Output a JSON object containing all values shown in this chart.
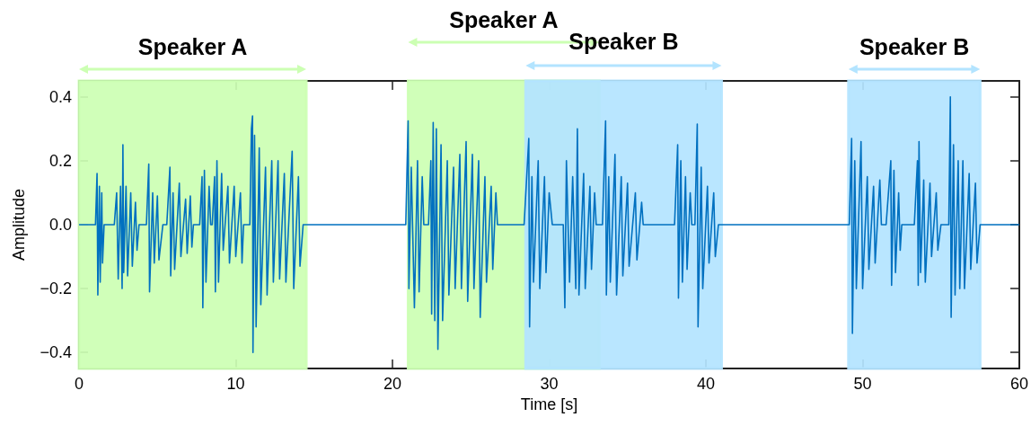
{
  "chart_data": {
    "type": "line",
    "xlabel": "Time [s]",
    "ylabel": "Amplitude",
    "xlim": [
      0,
      60
    ],
    "xticks": [
      0,
      10,
      20,
      30,
      40,
      50,
      60
    ],
    "ylim": [
      -0.45,
      0.45
    ],
    "yticks": [
      {
        "value": -0.4,
        "label": "−0.4"
      },
      {
        "value": -0.2,
        "label": "−0.2"
      },
      {
        "value": 0,
        "label": "0.0"
      },
      0.2,
      0.4
    ],
    "grid": false,
    "marker": "none",
    "line_style": "solid",
    "bands": [
      {
        "axis": "x",
        "from": 0,
        "to": 14.5,
        "label": "Speaker A",
        "color": "#ccffb3"
      },
      {
        "axis": "x",
        "from": 21.0,
        "to": 33.2,
        "label": "Speaker A",
        "color": "#ccffb3"
      },
      {
        "axis": "x",
        "from": 28.5,
        "to": 41.0,
        "label": "Speaker B",
        "color": "#b3e4ff"
      },
      {
        "axis": "x",
        "from": 49.1,
        "to": 57.5,
        "label": "Speaker B",
        "color": "#b3e4ff"
      }
    ],
    "series": [
      {
        "color": "#0070c0",
        "x": [
          0,
          1.05,
          1.15,
          1.2,
          1.3,
          1.35,
          1.45,
          1.5,
          1.6,
          2.25,
          2.4,
          2.5,
          2.65,
          2.75,
          2.8,
          2.85,
          3.0,
          3.1,
          3.3,
          3.4,
          3.6,
          3.7,
          3.83,
          4.3,
          4.45,
          4.5,
          4.7,
          4.8,
          5.0,
          5.1,
          5.35,
          5.6,
          5.8,
          5.85,
          6.0,
          6.1,
          6.4,
          6.5,
          6.8,
          6.9,
          7.1,
          7.2,
          7.3,
          7.7,
          7.85,
          7.9,
          8.0,
          8.1,
          8.3,
          8.4,
          8.5,
          8.65,
          8.7,
          8.8,
          8.9,
          9.1,
          9.2,
          9.5,
          9.6,
          9.9,
          10.0,
          10.3,
          10.4,
          10.5,
          10.9,
          11.0,
          11.07,
          11.1,
          11.2,
          11.3,
          11.5,
          11.6,
          11.9,
          12.0,
          12.3,
          12.4,
          12.7,
          12.8,
          13.1,
          13.2,
          13.6,
          13.7,
          14.0,
          14.1,
          14.3,
          20.85,
          21.0,
          21.05,
          21.2,
          21.4,
          21.6,
          21.7,
          21.9,
          22.0,
          22.3,
          22.45,
          22.5,
          22.6,
          22.7,
          22.8,
          22.9,
          23.1,
          23.2,
          23.5,
          23.6,
          23.9,
          24.0,
          24.3,
          24.4,
          24.7,
          24.8,
          25.1,
          25.2,
          25.5,
          25.6,
          25.9,
          26.0,
          26.3,
          26.4,
          26.6,
          26.7,
          28.4,
          28.7,
          28.75,
          28.9,
          29.0,
          29.3,
          29.4,
          29.7,
          29.8,
          30.0,
          30.2,
          30.9,
          31.0,
          31.1,
          31.3,
          31.5,
          31.7,
          31.8,
          31.9,
          32.2,
          32.3,
          32.6,
          32.7,
          32.9,
          33.0,
          33.4,
          33.6,
          33.65,
          33.8,
          33.9,
          34.2,
          34.3,
          34.6,
          34.7,
          35.0,
          35.1,
          35.5,
          35.6,
          35.9,
          36.0,
          38.0,
          38.2,
          38.25,
          38.4,
          38.5,
          38.7,
          38.8,
          39.0,
          39.1,
          39.3,
          39.45,
          39.5,
          39.7,
          39.8,
          40.1,
          40.2,
          40.5,
          40.6,
          40.8,
          49.15,
          49.3,
          49.35,
          49.5,
          49.6,
          49.9,
          50.0,
          50.3,
          50.4,
          50.7,
          50.8,
          51.1,
          51.2,
          51.5,
          51.8,
          51.85,
          52.0,
          52.1,
          52.3,
          52.4,
          52.5,
          53.3,
          53.5,
          53.55,
          53.6,
          53.7,
          53.9,
          54.0,
          54.3,
          54.4,
          54.7,
          54.8,
          55.0,
          55.5,
          55.6,
          55.65,
          55.8,
          55.9,
          56.1,
          56.2,
          56.4,
          56.5,
          56.8,
          56.9,
          57.2,
          57.3,
          57.5,
          60
        ],
        "values": [
          0,
          0,
          0.16,
          -0.22,
          0.12,
          -0.18,
          0.1,
          -0.12,
          0,
          0,
          0.1,
          -0.17,
          0.12,
          -0.2,
          0.25,
          -0.15,
          0.12,
          -0.16,
          0.1,
          -0.13,
          0.07,
          -0.08,
          0,
          0,
          0.19,
          -0.21,
          0.1,
          -0.12,
          0.09,
          -0.11,
          0,
          0,
          0.18,
          -0.16,
          0.1,
          -0.14,
          0.13,
          -0.1,
          0.08,
          -0.09,
          0.09,
          -0.07,
          0,
          0,
          0.15,
          -0.26,
          0.17,
          -0.18,
          0.12,
          0,
          0,
          0.15,
          -0.21,
          0.2,
          -0.18,
          0.16,
          -0.08,
          0.12,
          -0.12,
          0.12,
          -0.1,
          0.1,
          -0.12,
          0,
          0,
          0.3,
          0.34,
          -0.4,
          0.28,
          -0.32,
          0.24,
          -0.25,
          0.18,
          -0.22,
          0.2,
          -0.18,
          0.2,
          -0.17,
          0.16,
          -0.18,
          0.23,
          -0.2,
          0.15,
          -0.13,
          0,
          0,
          0.325,
          -0.2,
          0.18,
          -0.26,
          0.2,
          -0.21,
          0.15,
          0,
          0,
          0.2,
          -0.28,
          0.32,
          -0.3,
          0.3,
          -0.39,
          0.25,
          -0.3,
          0.2,
          -0.22,
          0.18,
          -0.2,
          0.22,
          -0.2,
          0.26,
          -0.24,
          0.22,
          -0.2,
          0.2,
          -0.29,
          0.15,
          -0.18,
          0.12,
          -0.14,
          0.1,
          0,
          0,
          0.27,
          -0.32,
          0.15,
          -0.18,
          0.2,
          -0.2,
          0.15,
          -0.15,
          0.1,
          0,
          0,
          -0.26,
          0.2,
          -0.18,
          0.15,
          -0.2,
          0.3,
          -0.22,
          0.16,
          -0.2,
          0.12,
          -0.14,
          0.1,
          0,
          0,
          0.325,
          -0.22,
          0.15,
          -0.18,
          0.22,
          -0.22,
          0.15,
          -0.16,
          0.13,
          -0.13,
          0.1,
          -0.11,
          0.07,
          0,
          0,
          0.25,
          -0.23,
          0.2,
          -0.18,
          0.15,
          -0.14,
          0.1,
          0,
          0,
          0.315,
          -0.32,
          0.18,
          -0.2,
          0.12,
          -0.12,
          0.1,
          -0.1,
          0,
          0,
          0.27,
          -0.34,
          0.2,
          -0.2,
          0.26,
          -0.2,
          0.15,
          -0.14,
          0.12,
          -0.12,
          0.14,
          0,
          0,
          0.2,
          -0.19,
          0.17,
          -0.15,
          0.1,
          -0.08,
          0,
          0,
          0.2,
          -0.19,
          0.26,
          -0.15,
          0.14,
          -0.18,
          0.13,
          -0.1,
          0.1,
          -0.08,
          0,
          0,
          0.4,
          -0.29,
          0.25,
          -0.22,
          0.2,
          -0.2,
          0.2,
          -0.2,
          0.16,
          -0.14,
          0.13,
          -0.12,
          0,
          0
        ]
      }
    ]
  }
}
